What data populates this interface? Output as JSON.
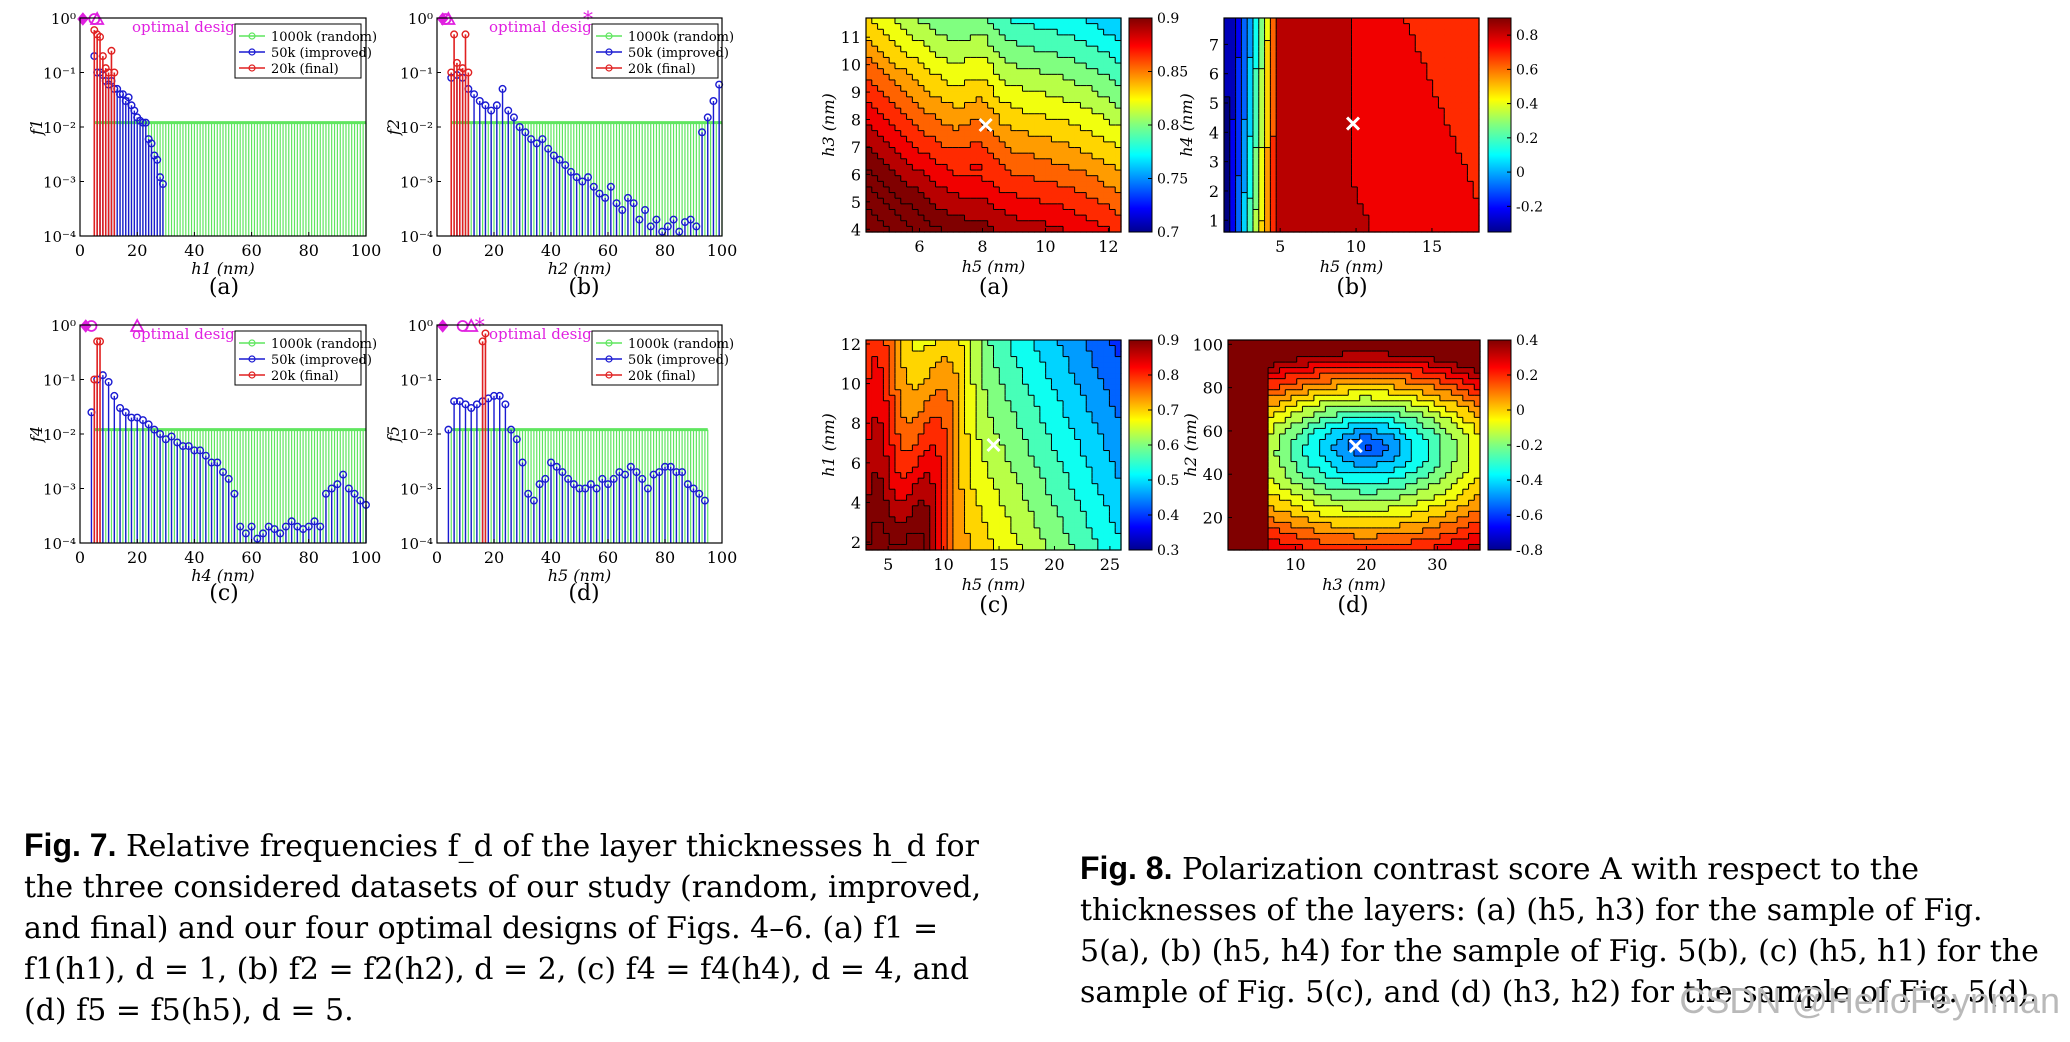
{
  "watermark": "CSDN @HelloFeynman",
  "fig7": {
    "label": "Fig. 7.",
    "text": " Relative frequencies f_d of the layer thicknesses h_d for the three considered datasets of our study (random, improved, and final) and our four optimal designs of Figs. 4–6. (a) f1 = f1(h1), d = 1, (b) f2 = f2(h2), d = 2, (c) f4 = f4(h4), d = 4, and (d) f5 = f5(h5), d = 5.",
    "ref_figs": "4–6",
    "panels": [
      "(a)",
      "(b)",
      "(c)",
      "(d)"
    ]
  },
  "fig8": {
    "label": "Fig. 8.",
    "text": " Polarization contrast score A with respect to the thicknesses of the layers: (a) (h5, h3) for the sample of Fig. 5(a), (b) (h5, h4) for the sample of Fig. 5(b), (c) (h5, h1) for the sample of Fig. 5(c), and (d) (h3, h2) for the sample of Fig. 5(d).",
    "ref_fig": "5",
    "panels": [
      "(a)",
      "(b)",
      "(c)",
      "(d)"
    ]
  },
  "colors": {
    "random": "#5fe65f",
    "improved": "#1a1ad2",
    "final": "#e02020",
    "optimal": "#e020e0"
  },
  "chart_data": [
    {
      "type": "bar",
      "subtype": "stem",
      "panel": "(a)",
      "xlabel": "h1 (nm)",
      "ylabel": "f1",
      "xlim": [
        0,
        100
      ],
      "ylim": [
        0.0001,
        1
      ],
      "yscale": "log",
      "xticks": [
        0,
        20,
        40,
        60,
        80,
        100
      ],
      "yticks": [
        "10^-4",
        "10^-3",
        "10^-2",
        "10^-1",
        "10^0"
      ],
      "legend": [
        "1000k (random)",
        "50k (improved)",
        "20k (final)"
      ],
      "annotation": "optimal designs",
      "series": [
        {
          "name": "1000k (random)",
          "x_start": 5,
          "x_end": 100,
          "value": 0.012
        },
        {
          "name": "50k (improved)",
          "x": [
            5,
            6,
            7,
            8,
            9,
            10,
            11,
            12,
            13,
            14,
            15,
            16,
            17,
            18,
            19,
            20,
            21,
            22,
            23,
            24,
            25,
            26,
            27,
            28,
            29
          ],
          "values": [
            0.2,
            0.1,
            0.1,
            0.09,
            0.07,
            0.06,
            0.07,
            0.05,
            0.05,
            0.04,
            0.04,
            0.03,
            0.035,
            0.025,
            0.02,
            0.015,
            0.013,
            0.012,
            0.012,
            0.006,
            0.005,
            0.003,
            0.0025,
            0.0012,
            0.0009
          ]
        },
        {
          "name": "20k (final)",
          "x": [
            5,
            6,
            7,
            8,
            9,
            10,
            11,
            12
          ],
          "values": [
            0.6,
            0.5,
            0.45,
            0.2,
            0.12,
            0.1,
            0.25,
            0.1
          ]
        }
      ],
      "optimal_designs": [
        1,
        5,
        6
      ]
    },
    {
      "type": "bar",
      "subtype": "stem",
      "panel": "(b)",
      "xlabel": "h2 (nm)",
      "ylabel": "f2",
      "xlim": [
        0,
        100
      ],
      "ylim": [
        0.0001,
        1
      ],
      "yscale": "log",
      "xticks": [
        0,
        20,
        40,
        60,
        80,
        100
      ],
      "yticks": [
        "10^-4",
        "10^-3",
        "10^-2",
        "10^-1",
        "10^0"
      ],
      "legend": [
        "1000k (random)",
        "50k (improved)",
        "20k (final)"
      ],
      "annotation": "optimal designs",
      "series": [
        {
          "name": "1000k (random)",
          "x_start": 5,
          "x_end": 100,
          "value": 0.012
        },
        {
          "name": "50k (improved)",
          "x": [
            5,
            7,
            9,
            11,
            13,
            15,
            17,
            19,
            21,
            23,
            25,
            27,
            29,
            31,
            33,
            35,
            37,
            39,
            41,
            43,
            45,
            47,
            49,
            51,
            53,
            55,
            57,
            59,
            61,
            63,
            65,
            67,
            69,
            71,
            73,
            75,
            77,
            79,
            81,
            83,
            85,
            87,
            89,
            91,
            93,
            95,
            97,
            99
          ],
          "values": [
            0.08,
            0.09,
            0.08,
            0.05,
            0.04,
            0.03,
            0.025,
            0.02,
            0.025,
            0.05,
            0.02,
            0.015,
            0.01,
            0.008,
            0.006,
            0.005,
            0.006,
            0.004,
            0.003,
            0.0025,
            0.002,
            0.0015,
            0.0012,
            0.001,
            0.0012,
            0.0008,
            0.0006,
            0.0005,
            0.0008,
            0.0004,
            0.0003,
            0.0005,
            0.0004,
            0.0002,
            0.0003,
            0.00015,
            0.0002,
            0.00012,
            0.00015,
            0.0002,
            0.00012,
            0.00018,
            0.0002,
            0.00015,
            0.008,
            0.015,
            0.03,
            0.06
          ]
        },
        {
          "name": "20k (final)",
          "x": [
            5,
            6,
            7,
            8,
            9,
            10,
            11
          ],
          "values": [
            0.1,
            0.5,
            0.15,
            0.1,
            0.12,
            0.5,
            0.1
          ]
        }
      ],
      "optimal_designs": [
        2,
        3,
        4,
        53
      ]
    },
    {
      "type": "bar",
      "subtype": "stem",
      "panel": "(c)",
      "xlabel": "h4 (nm)",
      "ylabel": "f4",
      "xlim": [
        0,
        100
      ],
      "ylim": [
        0.0001,
        1
      ],
      "yscale": "log",
      "xticks": [
        0,
        20,
        40,
        60,
        80,
        100
      ],
      "yticks": [
        "10^-4",
        "10^-3",
        "10^-2",
        "10^-1",
        "10^0"
      ],
      "legend": [
        "1000k (random)",
        "50k (improved)",
        "20k (final)"
      ],
      "annotation": "optimal designs",
      "series": [
        {
          "name": "1000k (random)",
          "x_start": 5,
          "x_end": 100,
          "value": 0.012
        },
        {
          "name": "50k (improved)",
          "x": [
            4,
            6,
            8,
            10,
            12,
            14,
            16,
            18,
            20,
            22,
            24,
            26,
            28,
            30,
            32,
            34,
            36,
            38,
            40,
            42,
            44,
            46,
            48,
            50,
            52,
            54,
            56,
            58,
            60,
            62,
            64,
            66,
            68,
            70,
            72,
            74,
            76,
            78,
            80,
            82,
            84,
            86,
            88,
            90,
            92,
            94,
            96,
            98,
            100
          ],
          "values": [
            0.025,
            0.1,
            0.12,
            0.09,
            0.05,
            0.03,
            0.025,
            0.02,
            0.02,
            0.018,
            0.015,
            0.012,
            0.01,
            0.008,
            0.009,
            0.007,
            0.006,
            0.006,
            0.005,
            0.005,
            0.004,
            0.003,
            0.003,
            0.002,
            0.0015,
            0.0008,
            0.0002,
            0.00015,
            0.0002,
            0.00012,
            0.00015,
            0.0002,
            0.00018,
            0.00015,
            0.0002,
            0.00025,
            0.0002,
            0.00018,
            0.0002,
            0.00025,
            0.0002,
            0.0008,
            0.001,
            0.0012,
            0.0018,
            0.001,
            0.0008,
            0.0006,
            0.0005
          ]
        },
        {
          "name": "20k (final)",
          "x": [
            5,
            6,
            7
          ],
          "values": [
            0.1,
            0.5,
            0.5
          ]
        }
      ],
      "optimal_designs": [
        2,
        4,
        20
      ]
    },
    {
      "type": "bar",
      "subtype": "stem",
      "panel": "(d)",
      "xlabel": "h5 (nm)",
      "ylabel": "f5",
      "xlim": [
        0,
        100
      ],
      "ylim": [
        0.0001,
        1
      ],
      "yscale": "log",
      "xticks": [
        0,
        20,
        40,
        60,
        80,
        100
      ],
      "yticks": [
        "10^-4",
        "10^-3",
        "10^-2",
        "10^-1",
        "10^0"
      ],
      "legend": [
        "1000k (random)",
        "50k (improved)",
        "20k (final)"
      ],
      "annotation": "optimal designs",
      "series": [
        {
          "name": "1000k (random)",
          "x_start": 5,
          "x_end": 95,
          "value": 0.012
        },
        {
          "name": "50k (improved)",
          "x": [
            4,
            6,
            8,
            10,
            12,
            14,
            16,
            18,
            20,
            22,
            24,
            26,
            28,
            30,
            32,
            34,
            36,
            38,
            40,
            42,
            44,
            46,
            48,
            50,
            52,
            54,
            56,
            58,
            60,
            62,
            64,
            66,
            68,
            70,
            72,
            74,
            76,
            78,
            80,
            82,
            84,
            86,
            88,
            90,
            92,
            94
          ],
          "values": [
            0.012,
            0.04,
            0.04,
            0.035,
            0.03,
            0.035,
            0.04,
            0.045,
            0.05,
            0.05,
            0.035,
            0.012,
            0.008,
            0.003,
            0.0008,
            0.0006,
            0.0012,
            0.0015,
            0.003,
            0.0025,
            0.002,
            0.0015,
            0.0012,
            0.001,
            0.001,
            0.0012,
            0.001,
            0.0015,
            0.0012,
            0.0015,
            0.002,
            0.0018,
            0.0025,
            0.002,
            0.0015,
            0.001,
            0.0018,
            0.002,
            0.0025,
            0.0025,
            0.002,
            0.002,
            0.0012,
            0.001,
            0.0008,
            0.0006
          ]
        },
        {
          "name": "20k (final)",
          "x": [
            16,
            17
          ],
          "values": [
            0.5,
            0.7
          ]
        }
      ],
      "optimal_designs": [
        2,
        9,
        12,
        15
      ]
    },
    {
      "type": "heatmap",
      "subtype": "contour",
      "panel": "(a)",
      "xlabel": "h5 (nm)",
      "ylabel": "h3 (nm)",
      "xlim": [
        4.3,
        12.4
      ],
      "ylim": [
        3.9,
        11.7
      ],
      "xticks": [
        6,
        8,
        10,
        12
      ],
      "yticks": [
        4,
        5,
        6,
        7,
        8,
        9,
        10,
        11
      ],
      "colorbar": {
        "min": 0.7,
        "max": 0.9,
        "ticks": [
          "0.7",
          "0.75",
          "0.8",
          "0.85",
          "0.9"
        ]
      },
      "marker": {
        "x": 8.1,
        "y": 7.8
      }
    },
    {
      "type": "heatmap",
      "subtype": "contour",
      "panel": "(b)",
      "xlabel": "h5 (nm)",
      "ylabel": "h4 (nm)",
      "xlim": [
        1.3,
        18.1
      ],
      "ylim": [
        0.6,
        7.9
      ],
      "xticks": [
        5,
        10,
        15
      ],
      "yticks": [
        1,
        2,
        3,
        4,
        5,
        6,
        7
      ],
      "colorbar": {
        "min": -0.35,
        "max": 0.9,
        "ticks": [
          "-0.2",
          "0",
          "0.2",
          "0.4",
          "0.6",
          "0.8"
        ]
      },
      "marker": {
        "x": 9.8,
        "y": 4.3
      }
    },
    {
      "type": "heatmap",
      "subtype": "contour",
      "panel": "(c)",
      "xlabel": "h5 (nm)",
      "ylabel": "h1 (nm)",
      "xlim": [
        3,
        26
      ],
      "ylim": [
        1.6,
        12.2
      ],
      "xticks": [
        5,
        10,
        15,
        20,
        25
      ],
      "yticks": [
        2,
        4,
        6,
        8,
        10,
        12
      ],
      "colorbar": {
        "min": 0.3,
        "max": 0.9,
        "ticks": [
          "0.3",
          "0.4",
          "0.5",
          "0.6",
          "0.7",
          "0.8",
          "0.9"
        ]
      },
      "marker": {
        "x": 14.5,
        "y": 6.9
      }
    },
    {
      "type": "heatmap",
      "subtype": "contour",
      "panel": "(d)",
      "xlabel": "h3 (nm)",
      "ylabel": "h2 (nm)",
      "xlim": [
        0.5,
        36
      ],
      "ylim": [
        5,
        102
      ],
      "xticks": [
        10,
        20,
        30
      ],
      "yticks": [
        20,
        40,
        60,
        80,
        100
      ],
      "colorbar": {
        "min": -0.8,
        "max": 0.4,
        "ticks": [
          "-0.8",
          "-0.6",
          "-0.4",
          "-0.2",
          "0",
          "0.2",
          "0.4"
        ]
      },
      "marker": {
        "x": 18.5,
        "y": 53
      }
    }
  ]
}
